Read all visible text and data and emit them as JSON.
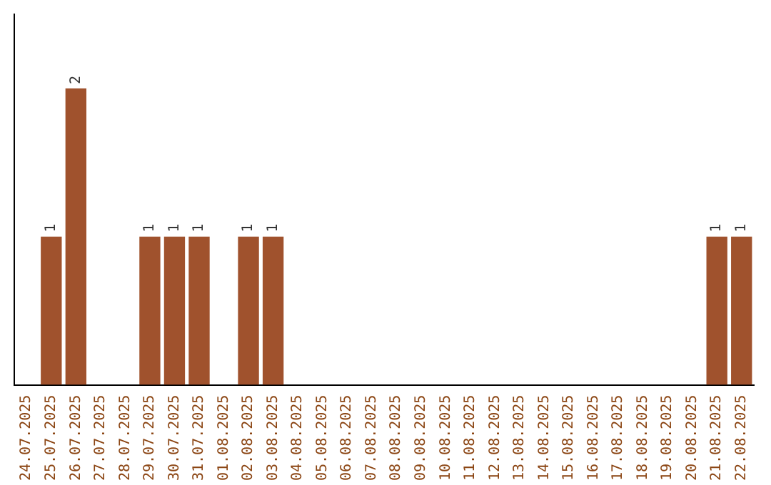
{
  "chart_data": {
    "type": "bar",
    "categories": [
      "24.07.2025",
      "25.07.2025",
      "26.07.2025",
      "27.07.2025",
      "28.07.2025",
      "29.07.2025",
      "30.07.2025",
      "31.07.2025",
      "01.08.2025",
      "02.08.2025",
      "03.08.2025",
      "04.08.2025",
      "05.08.2025",
      "06.08.2025",
      "07.08.2025",
      "08.08.2025",
      "09.08.2025",
      "10.08.2025",
      "11.08.2025",
      "12.08.2025",
      "13.08.2025",
      "14.08.2025",
      "15.08.2025",
      "16.08.2025",
      "17.08.2025",
      "18.08.2025",
      "19.08.2025",
      "20.08.2025",
      "21.08.2025",
      "22.08.2025"
    ],
    "values": [
      0,
      1,
      2,
      0,
      0,
      1,
      1,
      1,
      0,
      1,
      1,
      0,
      0,
      0,
      0,
      0,
      0,
      0,
      0,
      0,
      0,
      0,
      0,
      0,
      0,
      0,
      0,
      0,
      1,
      1
    ],
    "value_labels": [
      null,
      "1",
      "2",
      null,
      null,
      "1",
      "1",
      "1",
      null,
      "1",
      "1",
      null,
      null,
      null,
      null,
      null,
      null,
      null,
      null,
      null,
      null,
      null,
      null,
      null,
      null,
      null,
      null,
      null,
      "1",
      "1"
    ],
    "color": "#a0522d",
    "grid": false,
    "legend": false,
    "tick_labels": "x"
  }
}
